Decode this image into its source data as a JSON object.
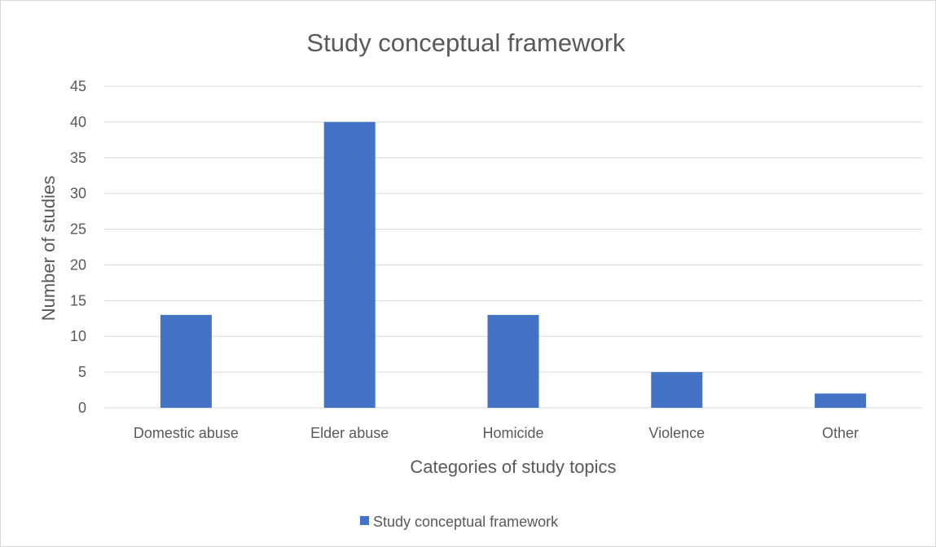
{
  "chart_data": {
    "type": "bar",
    "title": "Study conceptual framework",
    "xlabel": "Categories of study topics",
    "ylabel": "Number of studies",
    "categories": [
      "Domestic abuse",
      "Elder abuse",
      "Homicide",
      "Violence",
      "Other"
    ],
    "series": [
      {
        "name": "Study conceptual framework",
        "values": [
          13,
          40,
          13,
          5,
          2
        ],
        "color": "#4472c4"
      }
    ],
    "ylim": [
      0,
      45
    ],
    "yticks": [
      0,
      5,
      10,
      15,
      20,
      25,
      30,
      35,
      40,
      45
    ],
    "grid": true,
    "legend_position": "bottom"
  }
}
